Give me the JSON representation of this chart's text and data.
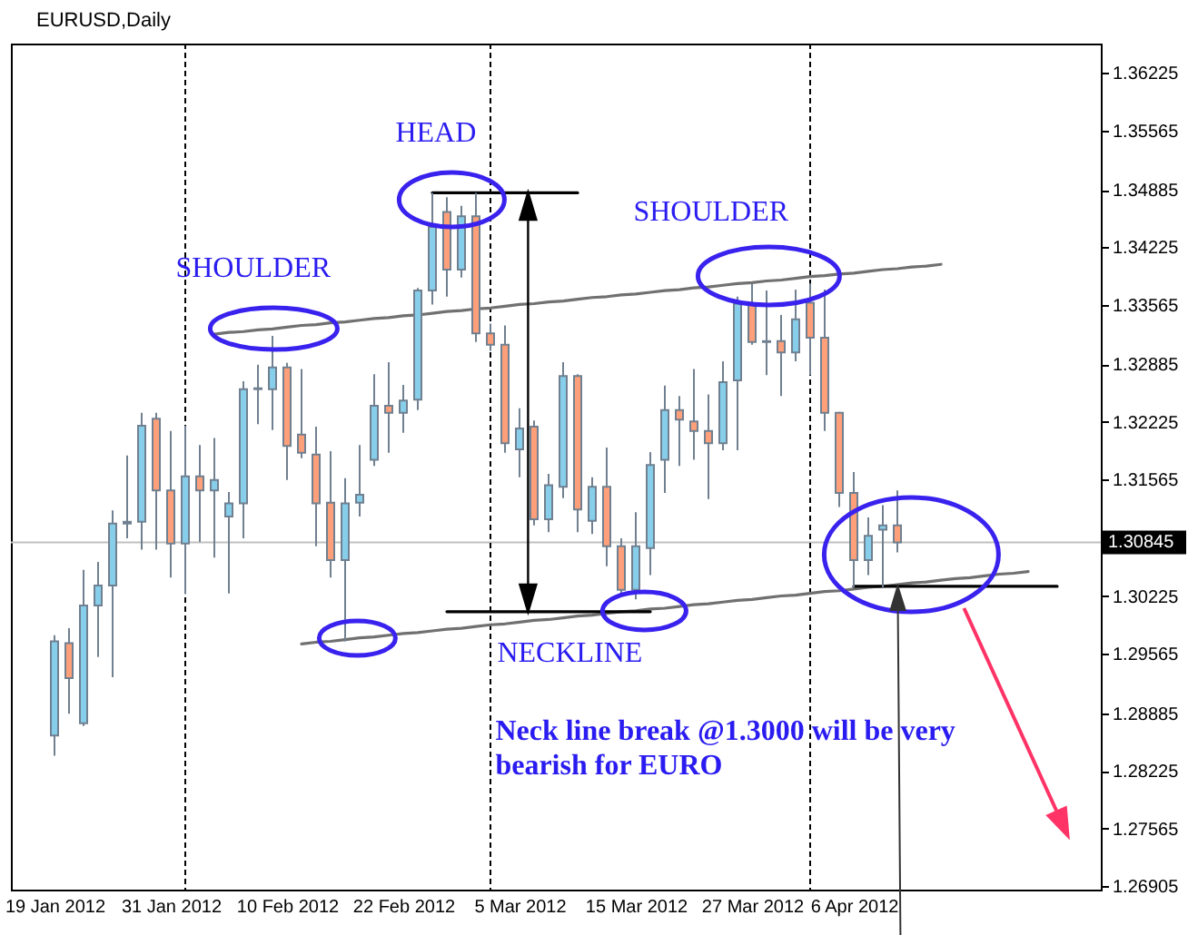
{
  "chart_data": {
    "type": "candlestick",
    "title": "EURUSD,Daily",
    "categories": [
      "19 Jan 2012",
      null,
      null,
      null,
      null,
      null,
      null,
      null,
      "31 Jan 2012",
      null,
      null,
      null,
      null,
      null,
      null,
      null,
      "10 Feb 2012",
      null,
      null,
      null,
      null,
      null,
      null,
      null,
      "22 Feb 2012",
      null,
      null,
      null,
      null,
      null,
      null,
      null,
      "5 Mar 2012",
      null,
      null,
      null,
      null,
      null,
      null,
      null,
      "15 Mar 2012",
      null,
      null,
      null,
      null,
      null,
      null,
      null,
      "27 Mar 2012",
      null,
      null,
      null,
      null,
      null,
      null,
      "6 Apr 2012",
      null,
      null,
      null,
      null,
      null,
      null,
      null,
      null,
      null,
      null,
      null,
      null,
      null,
      null,
      null,
      null
    ],
    "ylim": [
      1.26865,
      1.3656
    ],
    "yticks": [
      1.36225,
      1.35565,
      1.34885,
      1.34225,
      1.33565,
      1.32885,
      1.32225,
      1.31565,
      1.30225,
      1.29565,
      1.28885,
      1.28225,
      1.27565,
      1.26905
    ],
    "ohlc": [
      [
        1.2863,
        1.2978,
        1.284,
        1.2971
      ],
      [
        1.2969,
        1.2986,
        1.2888,
        1.2929
      ],
      [
        1.2877,
        1.3053,
        1.2874,
        1.3012
      ],
      [
        1.3012,
        1.3062,
        1.2953,
        1.3035
      ],
      [
        1.3035,
        1.3121,
        1.293,
        1.3106
      ],
      [
        1.3106,
        1.3184,
        1.3089,
        1.3108
      ],
      [
        1.3108,
        1.3233,
        1.3076,
        1.3218
      ],
      [
        1.3226,
        1.3233,
        1.3076,
        1.3144
      ],
      [
        1.3144,
        1.3212,
        1.3044,
        1.3083
      ],
      [
        1.3083,
        1.3218,
        1.3025,
        1.316
      ],
      [
        1.316,
        1.3196,
        1.3085,
        1.3144
      ],
      [
        1.3144,
        1.3204,
        1.3067,
        1.3156
      ],
      [
        1.3114,
        1.3142,
        1.3026,
        1.3129
      ],
      [
        1.3129,
        1.3269,
        1.3089,
        1.326
      ],
      [
        1.326,
        1.3288,
        1.322,
        1.3261
      ],
      [
        1.326,
        1.3321,
        1.3213,
        1.3285
      ],
      [
        1.3285,
        1.329,
        1.3156,
        1.3195
      ],
      [
        1.3208,
        1.3283,
        1.3181,
        1.3187
      ],
      [
        1.3185,
        1.3217,
        1.308,
        1.3129
      ],
      [
        1.313,
        1.3189,
        1.3044,
        1.3064
      ],
      [
        1.3064,
        1.3158,
        1.2971,
        1.3129
      ],
      [
        1.313,
        1.3196,
        1.3114,
        1.3139
      ],
      [
        1.3179,
        1.3277,
        1.3172,
        1.3241
      ],
      [
        1.3241,
        1.3291,
        1.3187,
        1.3233
      ],
      [
        1.3233,
        1.3265,
        1.321,
        1.3247
      ],
      [
        1.3248,
        1.3376,
        1.3236,
        1.3373
      ],
      [
        1.3373,
        1.3485,
        1.3357,
        1.3446
      ],
      [
        1.3463,
        1.348,
        1.3366,
        1.3397
      ],
      [
        1.3397,
        1.347,
        1.3388,
        1.3458
      ],
      [
        1.3458,
        1.3485,
        1.3314,
        1.3324
      ],
      [
        1.3324,
        1.3335,
        1.3304,
        1.3311
      ],
      [
        1.3311,
        1.3333,
        1.3187,
        1.3198
      ],
      [
        1.3191,
        1.3238,
        1.3159,
        1.3215
      ],
      [
        1.3217,
        1.3224,
        1.3104,
        1.3111
      ],
      [
        1.3111,
        1.3163,
        1.3096,
        1.315
      ],
      [
        1.3148,
        1.3291,
        1.3135,
        1.3275
      ],
      [
        1.3275,
        1.3277,
        1.3096,
        1.3122
      ],
      [
        1.3109,
        1.3159,
        1.3094,
        1.3148
      ],
      [
        1.3148,
        1.3193,
        1.3057,
        1.308
      ],
      [
        1.308,
        1.3089,
        1.3023,
        1.303
      ],
      [
        1.303,
        1.3119,
        1.3019,
        1.308
      ],
      [
        1.3078,
        1.3188,
        1.3047,
        1.3173
      ],
      [
        1.3179,
        1.3264,
        1.3141,
        1.3236
      ],
      [
        1.3236,
        1.3252,
        1.3172,
        1.3225
      ],
      [
        1.3223,
        1.3283,
        1.3179,
        1.3212
      ],
      [
        1.3212,
        1.3254,
        1.3134,
        1.3198
      ],
      [
        1.3198,
        1.3292,
        1.319,
        1.3268
      ],
      [
        1.327,
        1.3366,
        1.319,
        1.3358
      ],
      [
        1.3358,
        1.3381,
        1.3311,
        1.3314
      ],
      [
        1.3314,
        1.3373,
        1.3276,
        1.3315
      ],
      [
        1.3315,
        1.3345,
        1.3252,
        1.3302
      ],
      [
        1.3302,
        1.3374,
        1.3292,
        1.334
      ],
      [
        1.3359,
        1.3381,
        1.3276,
        1.3319
      ],
      [
        1.3319,
        1.3374,
        1.3212,
        1.3233
      ],
      [
        1.3233,
        1.3234,
        1.3125,
        1.3141
      ],
      [
        1.3141,
        1.3165,
        1.3033,
        1.3064
      ],
      [
        1.3064,
        1.3113,
        1.3047,
        1.3092
      ],
      [
        1.3099,
        1.3127,
        1.3033,
        1.3104
      ],
      [
        1.3104,
        1.3144,
        1.3073,
        1.30845
      ],
      null,
      null,
      null,
      null,
      null,
      null,
      null,
      null,
      null,
      null,
      null,
      null,
      null
    ],
    "colors": [
      "#87ceeb",
      "#ffa07a",
      "#87ceeb",
      "#87ceeb",
      "#87ceeb",
      "#87ceeb",
      "#87ceeb",
      "#ffa07a",
      "#ffa07a",
      "#87ceeb",
      "#ffa07a",
      "#87ceeb",
      "#87ceeb",
      "#87ceeb",
      "#87ceeb",
      "#87ceeb",
      "#ffa07a",
      "#ffa07a",
      "#ffa07a",
      "#ffa07a",
      "#87ceeb",
      "#87ceeb",
      "#87ceeb",
      "#ffa07a",
      "#87ceeb",
      "#87ceeb",
      "#87ceeb",
      "#ffa07a",
      "#87ceeb",
      "#ffa07a",
      "#ffa07a",
      "#ffa07a",
      "#87ceeb",
      "#ffa07a",
      "#87ceeb",
      "#87ceeb",
      "#ffa07a",
      "#87ceeb",
      "#ffa07a",
      "#ffa07a",
      "#87ceeb",
      "#87ceeb",
      "#87ceeb",
      "#ffa07a",
      "#ffa07a",
      "#ffa07a",
      "#87ceeb",
      "#87ceeb",
      "#ffa07a",
      "#87ceeb",
      "#ffa07a",
      "#87ceeb",
      "#ffa07a",
      "#ffa07a",
      "#ffa07a",
      "#ffa07a",
      "#87ceeb",
      "#87ceeb",
      "#ffa07a",
      null,
      null,
      null,
      null,
      null,
      null,
      null,
      null,
      null,
      null,
      null,
      null,
      null
    ],
    "series": [
      {
        "type": "line",
        "color": "#707070",
        "values": [
          null,
          null,
          null,
          null,
          null,
          null,
          null,
          null,
          null,
          null,
          null,
          1.3323,
          1.3325,
          1.3326,
          1.3328,
          1.3329,
          1.3331,
          1.3333,
          1.3334,
          1.3336,
          1.3337,
          1.3339,
          1.3341,
          1.3342,
          1.3344,
          1.3345,
          1.3347,
          1.3349,
          1.335,
          1.3352,
          1.3353,
          1.3355,
          1.3357,
          1.3358,
          1.336,
          1.3361,
          1.3363,
          1.3365,
          1.3366,
          1.3368,
          1.3369,
          1.3371,
          1.3373,
          1.3374,
          1.3376,
          1.3377,
          1.3379,
          1.3381,
          1.3382,
          1.3384,
          1.3385,
          1.3387,
          1.3389,
          1.339,
          1.3392,
          1.3393,
          1.3395,
          1.3397,
          1.3398,
          1.34,
          1.3401,
          1.3403,
          null,
          null,
          null,
          null,
          null,
          null,
          null,
          null,
          null,
          null
        ]
      },
      {
        "type": "line",
        "color": "#707070",
        "values": [
          null,
          null,
          null,
          null,
          null,
          null,
          null,
          null,
          null,
          null,
          null,
          null,
          null,
          null,
          null,
          null,
          null,
          1.2968,
          1.297,
          1.2971,
          1.2973,
          1.2975,
          1.2976,
          1.2978,
          1.298,
          1.2981,
          1.2983,
          1.2985,
          1.2986,
          1.2988,
          1.299,
          1.2991,
          1.2993,
          1.2995,
          1.2996,
          1.2998,
          1.3,
          1.3001,
          1.3003,
          1.3005,
          1.3006,
          1.3008,
          1.3009,
          1.3011,
          1.3013,
          1.3014,
          1.3016,
          1.3018,
          1.3019,
          1.3021,
          1.3023,
          1.3024,
          1.3026,
          1.3028,
          1.3029,
          1.3031,
          1.3033,
          1.3034,
          1.3036,
          1.3038,
          1.3039,
          1.3041,
          1.3043,
          1.3044,
          1.3046,
          1.3048,
          1.3049,
          1.3051,
          null,
          null,
          null,
          null
        ]
      },
      {
        "type": "line",
        "color": "#000000",
        "values": [
          null,
          null,
          null,
          null,
          null,
          null,
          null,
          null,
          null,
          null,
          null,
          null,
          null,
          null,
          null,
          null,
          null,
          null,
          null,
          null,
          null,
          null,
          null,
          null,
          null,
          null,
          1.3485,
          1.3485,
          1.3485,
          1.3485,
          1.3485,
          1.3485,
          1.3485,
          1.3485,
          1.3485,
          1.3485,
          1.3485,
          null,
          null,
          null,
          null,
          null,
          null,
          null,
          null,
          null,
          null,
          null,
          null,
          null,
          null,
          null,
          null,
          null,
          null,
          null,
          null,
          null,
          null,
          null,
          null,
          null,
          null,
          null,
          null,
          null,
          null,
          null,
          null,
          null,
          null,
          null
        ]
      },
      {
        "type": "line",
        "color": "#000000",
        "values": [
          null,
          null,
          null,
          null,
          null,
          null,
          null,
          null,
          null,
          null,
          null,
          null,
          null,
          null,
          null,
          null,
          null,
          null,
          null,
          null,
          null,
          null,
          null,
          null,
          null,
          null,
          null,
          1.3005,
          1.3005,
          1.3005,
          1.3005,
          1.3005,
          1.3005,
          1.3005,
          1.3005,
          1.3005,
          1.3005,
          1.3005,
          1.3005,
          1.3005,
          1.3005,
          1.3005,
          null,
          null,
          null,
          null,
          null,
          null,
          null,
          null,
          null,
          null,
          null,
          null,
          null,
          null,
          null,
          null,
          null,
          null,
          null,
          null,
          null,
          null,
          null,
          null,
          null,
          null,
          null,
          null,
          null,
          null
        ]
      },
      {
        "type": "line",
        "color": "#000000",
        "values": [
          null,
          null,
          null,
          null,
          null,
          null,
          null,
          null,
          null,
          null,
          null,
          null,
          null,
          null,
          null,
          null,
          null,
          null,
          null,
          null,
          null,
          null,
          null,
          null,
          null,
          null,
          null,
          null,
          null,
          null,
          null,
          null,
          null,
          null,
          null,
          null,
          null,
          null,
          null,
          null,
          null,
          null,
          null,
          null,
          null,
          null,
          null,
          null,
          null,
          null,
          null,
          null,
          null,
          null,
          null,
          1.3034,
          1.3034,
          1.3034,
          1.3034,
          1.3034,
          1.3034,
          1.3034,
          1.3034,
          1.3034,
          1.3034,
          1.3034,
          1.3034,
          1.3034,
          1.3034,
          1.3034,
          null,
          null
        ]
      }
    ],
    "ref_lines": [
      {
        "axis": "y",
        "value": 1.30845,
        "label": "1.30845",
        "color": "#c0c0c0"
      }
    ],
    "annotations": [
      "HEAD",
      "SHOULDER",
      "SHOULDER",
      "NECKLINE",
      "Neck line break @1.3000 will be very\nbearish for EURO"
    ]
  }
}
